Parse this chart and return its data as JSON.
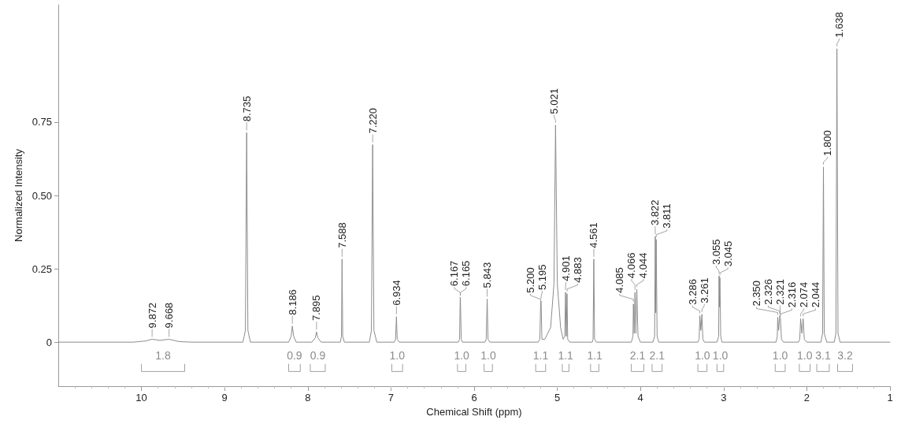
{
  "chart_data": {
    "type": "line",
    "xlabel": "Chemical Shift (ppm)",
    "ylabel": "Normalized Intensity",
    "xlim": [
      11,
      1
    ],
    "xticks": [
      10,
      9,
      8,
      7,
      6,
      5,
      4,
      3,
      2,
      1
    ],
    "ylim": [
      -0.15,
      1.15
    ],
    "yticks": [
      0,
      0.25,
      {
        "value": 0.5,
        "label": "0.50"
      },
      0.75
    ],
    "grid": false,
    "marker": "none",
    "line_style": "solid",
    "series": [
      {
        "color": "#8c8c8c",
        "x": [
          11,
          10.1,
          9.95,
          9.872,
          9.78,
          9.668,
          9.55,
          9.4,
          8.78,
          8.75,
          8.735,
          8.72,
          8.69,
          8.23,
          8.2,
          8.186,
          8.17,
          8.14,
          7.95,
          7.91,
          7.895,
          7.88,
          7.84,
          7.61,
          7.595,
          7.588,
          7.58,
          7.56,
          7.26,
          7.235,
          7.22,
          7.205,
          7.17,
          6.96,
          6.945,
          6.934,
          6.925,
          6.9,
          6.19,
          6.175,
          6.167,
          6.165,
          6.155,
          6.14,
          5.87,
          5.855,
          5.843,
          5.833,
          5.81,
          5.23,
          5.21,
          5.2,
          5.195,
          5.185,
          5.15,
          5.08,
          5.04,
          5.021,
          5.0,
          4.96,
          4.93,
          4.91,
          4.901,
          4.892,
          4.883,
          4.875,
          4.85,
          4.58,
          4.57,
          4.561,
          4.552,
          4.53,
          4.11,
          4.09,
          4.085,
          4.075,
          4.066,
          4.055,
          4.044,
          4.03,
          4.0,
          3.85,
          3.83,
          3.822,
          3.816,
          3.811,
          3.8,
          3.78,
          3.31,
          3.295,
          3.286,
          3.274,
          3.261,
          3.25,
          3.23,
          3.08,
          3.06,
          3.055,
          3.05,
          3.045,
          3.035,
          3.02,
          2.37,
          2.355,
          2.35,
          2.338,
          2.326,
          2.321,
          2.316,
          2.305,
          2.28,
          2.1,
          2.085,
          2.074,
          2.059,
          2.044,
          2.03,
          2.0,
          1.83,
          1.81,
          1.8,
          1.79,
          1.76,
          1.67,
          1.65,
          1.638,
          1.625,
          1.6,
          1
        ],
        "values": [
          0,
          0,
          0.004,
          0.01,
          0.006,
          0.01,
          0.002,
          0,
          0,
          0.04,
          0.714,
          0.04,
          0,
          0,
          0.02,
          0.055,
          0.02,
          0,
          0,
          0.015,
          0.035,
          0.015,
          0,
          0,
          0.02,
          0.283,
          0.02,
          0,
          0,
          0.04,
          0.673,
          0.04,
          0,
          0,
          0.01,
          0.087,
          0.01,
          0,
          0,
          0.01,
          0.153,
          0.15,
          0.01,
          0,
          0,
          0.01,
          0.147,
          0.01,
          0,
          0,
          0.01,
          0.13,
          0.14,
          0.01,
          0.01,
          0.05,
          0.2,
          0.74,
          0.2,
          0.05,
          0.01,
          0.02,
          0.17,
          0.02,
          0.165,
          0.01,
          0,
          0,
          0.01,
          0.283,
          0.01,
          0,
          0,
          0.02,
          0.13,
          0.03,
          0.17,
          0.03,
          0.18,
          0.02,
          0,
          0,
          0.02,
          0.36,
          0.1,
          0.35,
          0.02,
          0,
          0,
          0.01,
          0.09,
          0.04,
          0.095,
          0.01,
          0,
          0,
          0.02,
          0.226,
          0.12,
          0.22,
          0.02,
          0,
          0,
          0.02,
          0.085,
          0.04,
          0.09,
          0.085,
          0.08,
          0.01,
          0,
          0,
          0.01,
          0.08,
          0.03,
          0.08,
          0.01,
          0,
          0,
          0.03,
          0.597,
          0.03,
          0,
          0,
          0.03,
          1.0,
          0.03,
          0,
          0
        ]
      },
      {
        "color": "#a0a0a0",
        "x": [
          10.0,
          10.0,
          9.48,
          9.48
        ],
        "values": [
          -0.075,
          -0.1,
          -0.1,
          -0.075
        ]
      },
      {
        "color": "#a0a0a0",
        "x": [
          8.23,
          8.23,
          8.09,
          8.09
        ],
        "values": [
          -0.075,
          -0.1,
          -0.1,
          -0.075
        ]
      },
      {
        "color": "#a0a0a0",
        "x": [
          7.97,
          7.97,
          7.79,
          7.79
        ],
        "values": [
          -0.075,
          -0.1,
          -0.1,
          -0.075
        ]
      },
      {
        "color": "#a0a0a0",
        "x": [
          6.99,
          6.99,
          6.86,
          6.86
        ],
        "values": [
          -0.075,
          -0.1,
          -0.1,
          -0.075
        ]
      },
      {
        "color": "#a0a0a0",
        "x": [
          6.2,
          6.2,
          6.1,
          6.1
        ],
        "values": [
          -0.075,
          -0.1,
          -0.1,
          -0.075
        ]
      },
      {
        "color": "#a0a0a0",
        "x": [
          5.88,
          5.88,
          5.78,
          5.78
        ],
        "values": [
          -0.075,
          -0.1,
          -0.1,
          -0.075
        ]
      },
      {
        "color": "#a0a0a0",
        "x": [
          5.26,
          5.26,
          5.14,
          5.14
        ],
        "values": [
          -0.075,
          -0.1,
          -0.1,
          -0.075
        ]
      },
      {
        "color": "#a0a0a0",
        "x": [
          4.94,
          4.94,
          4.86,
          4.86
        ],
        "values": [
          -0.075,
          -0.1,
          -0.1,
          -0.075
        ]
      },
      {
        "color": "#a0a0a0",
        "x": [
          4.6,
          4.6,
          4.5,
          4.5
        ],
        "values": [
          -0.075,
          -0.1,
          -0.1,
          -0.075
        ]
      },
      {
        "color": "#a0a0a0",
        "x": [
          4.11,
          4.11,
          3.96,
          3.96
        ],
        "values": [
          -0.075,
          -0.1,
          -0.1,
          -0.075
        ]
      },
      {
        "color": "#a0a0a0",
        "x": [
          3.86,
          3.86,
          3.74,
          3.74
        ],
        "values": [
          -0.075,
          -0.1,
          -0.1,
          -0.075
        ]
      },
      {
        "color": "#a0a0a0",
        "x": [
          3.31,
          3.31,
          3.2,
          3.2
        ],
        "values": [
          -0.075,
          -0.1,
          -0.1,
          -0.075
        ]
      },
      {
        "color": "#a0a0a0",
        "x": [
          3.08,
          3.08,
          3.0,
          3.0
        ],
        "values": [
          -0.075,
          -0.1,
          -0.1,
          -0.075
        ]
      },
      {
        "color": "#a0a0a0",
        "x": [
          2.38,
          2.38,
          2.26,
          2.26
        ],
        "values": [
          -0.075,
          -0.1,
          -0.1,
          -0.075
        ]
      },
      {
        "color": "#a0a0a0",
        "x": [
          2.09,
          2.09,
          1.96,
          1.96
        ],
        "values": [
          -0.075,
          -0.1,
          -0.1,
          -0.075
        ]
      },
      {
        "color": "#a0a0a0",
        "x": [
          1.88,
          1.88,
          1.73,
          1.73
        ],
        "values": [
          -0.075,
          -0.1,
          -0.1,
          -0.075
        ]
      },
      {
        "color": "#a0a0a0",
        "x": [
          1.63,
          1.63,
          1.45,
          1.45
        ],
        "values": [
          -0.075,
          -0.1,
          -0.1,
          -0.075
        ]
      }
    ],
    "annotations": [
      {
        "text": "9.872",
        "x": 9.872,
        "y": 0.01
      },
      {
        "text": "9.668",
        "x": 9.668,
        "y": 0.01
      },
      {
        "text": "8.735",
        "x": 8.735,
        "y": 0.714
      },
      {
        "text": "8.186",
        "x": 8.186,
        "y": 0.055
      },
      {
        "text": "7.895",
        "x": 7.895,
        "y": 0.035
      },
      {
        "text": "7.588",
        "x": 7.588,
        "y": 0.283
      },
      {
        "text": "7.220",
        "x": 7.22,
        "y": 0.673
      },
      {
        "text": "6.934",
        "x": 6.934,
        "y": 0.087
      },
      {
        "text": "6.167",
        "x": 6.167,
        "y": 0.153
      },
      {
        "text": "6.165",
        "x": 6.165,
        "y": 0.15
      },
      {
        "text": "5.843",
        "x": 5.843,
        "y": 0.147
      },
      {
        "text": "5.200",
        "x": 5.2,
        "y": 0.13
      },
      {
        "text": "5.195",
        "x": 5.195,
        "y": 0.14
      },
      {
        "text": "5.021",
        "x": 5.021,
        "y": 0.74
      },
      {
        "text": "4.901",
        "x": 4.901,
        "y": 0.17
      },
      {
        "text": "4.883",
        "x": 4.883,
        "y": 0.165
      },
      {
        "text": "4.561",
        "x": 4.561,
        "y": 0.283
      },
      {
        "text": "4.085",
        "x": 4.085,
        "y": 0.13
      },
      {
        "text": "4.066",
        "x": 4.066,
        "y": 0.17
      },
      {
        "text": "4.044",
        "x": 4.044,
        "y": 0.18
      },
      {
        "text": "3.822",
        "x": 3.822,
        "y": 0.36
      },
      {
        "text": "3.811",
        "x": 3.811,
        "y": 0.35
      },
      {
        "text": "3.286",
        "x": 3.286,
        "y": 0.09
      },
      {
        "text": "3.261",
        "x": 3.261,
        "y": 0.095
      },
      {
        "text": "3.055",
        "x": 3.055,
        "y": 0.226
      },
      {
        "text": "3.045",
        "x": 3.045,
        "y": 0.22
      },
      {
        "text": "2.350",
        "x": 2.35,
        "y": 0.085
      },
      {
        "text": "2.326",
        "x": 2.326,
        "y": 0.09
      },
      {
        "text": "2.321",
        "x": 2.321,
        "y": 0.085
      },
      {
        "text": "2.316",
        "x": 2.316,
        "y": 0.08
      },
      {
        "text": "2.074",
        "x": 2.074,
        "y": 0.08
      },
      {
        "text": "2.044",
        "x": 2.044,
        "y": 0.08
      },
      {
        "text": "1.800",
        "x": 1.8,
        "y": 0.597
      },
      {
        "text": "1.638",
        "x": 1.638,
        "y": 1.0
      },
      {
        "text": "1.8",
        "x": 9.74,
        "y": -0.1
      },
      {
        "text": "0.9",
        "x": 8.16,
        "y": -0.1
      },
      {
        "text": "0.9",
        "x": 7.88,
        "y": -0.1
      },
      {
        "text": "1.0",
        "x": 6.925,
        "y": -0.1
      },
      {
        "text": "1.0",
        "x": 6.15,
        "y": -0.1
      },
      {
        "text": "1.0",
        "x": 5.83,
        "y": -0.1
      },
      {
        "text": "1.1",
        "x": 5.2,
        "y": -0.1
      },
      {
        "text": "1.1",
        "x": 4.9,
        "y": -0.1
      },
      {
        "text": "1.1",
        "x": 4.55,
        "y": -0.1
      },
      {
        "text": "2.1",
        "x": 4.035,
        "y": -0.1
      },
      {
        "text": "2.1",
        "x": 3.8,
        "y": -0.1
      },
      {
        "text": "1.0",
        "x": 3.255,
        "y": -0.1
      },
      {
        "text": "1.0",
        "x": 3.04,
        "y": -0.1
      },
      {
        "text": "1.0",
        "x": 2.32,
        "y": -0.1
      },
      {
        "text": "1.0",
        "x": 2.025,
        "y": -0.1
      },
      {
        "text": "3.1",
        "x": 1.805,
        "y": -0.1
      },
      {
        "text": "3.2",
        "x": 1.54,
        "y": -0.1
      }
    ]
  }
}
